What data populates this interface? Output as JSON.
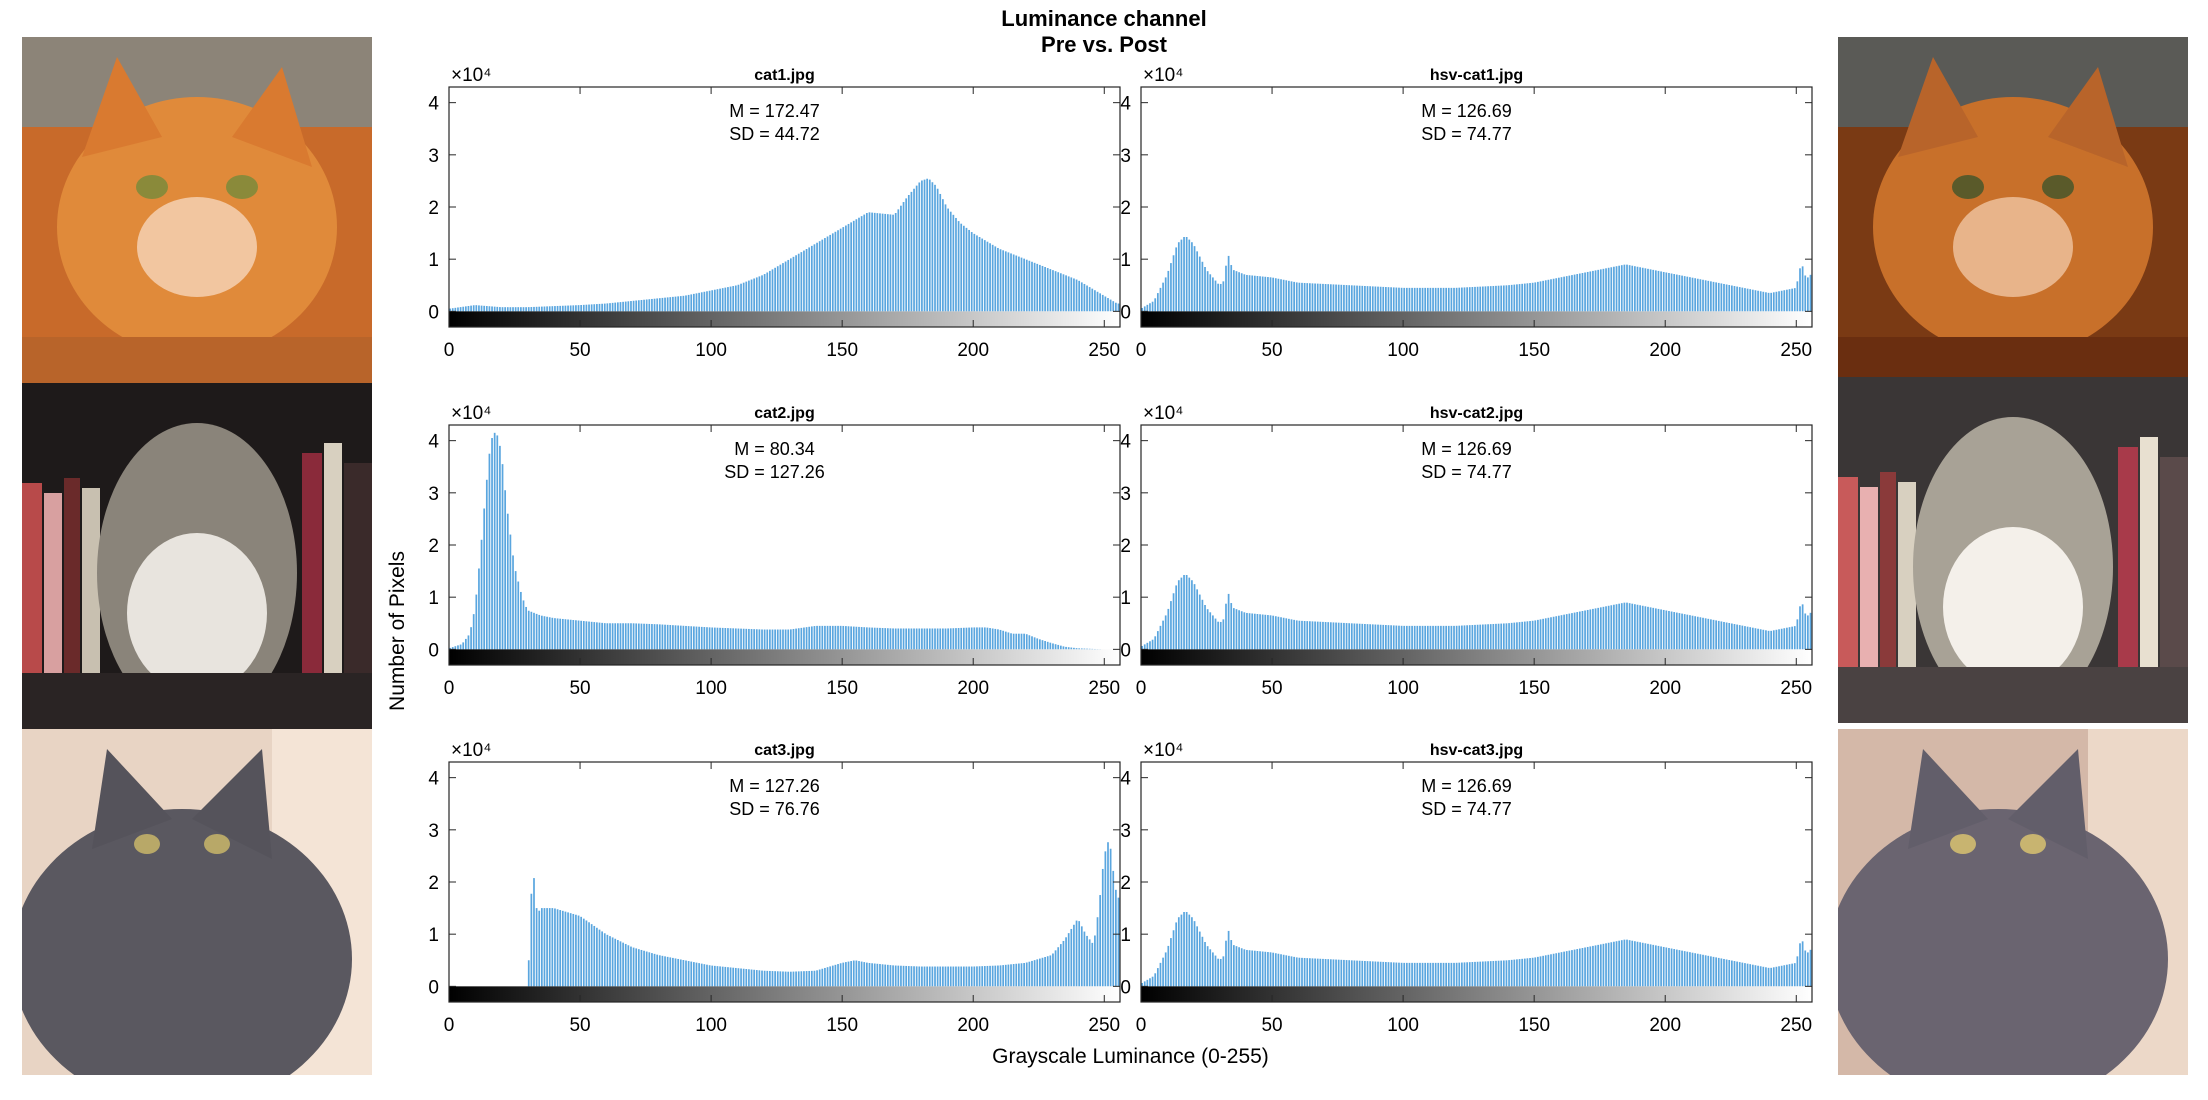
{
  "figure": {
    "title_line1": "Luminance channel",
    "title_line2": "Pre vs. Post",
    "ylabel": "Number of Pixels",
    "xlabel": "Grayscale Luminance (0-255)"
  },
  "photos": {
    "left": [
      {
        "name": "orange tabby cat (original)",
        "tone": "orange"
      },
      {
        "name": "long-haired tabby cat with books (original)",
        "tone": "tabby"
      },
      {
        "name": "gray cat (original)",
        "tone": "gray"
      }
    ],
    "right": [
      {
        "name": "orange tabby cat (equalized)",
        "tone": "orange-eq"
      },
      {
        "name": "long-haired tabby cat with books (equalized)",
        "tone": "tabby-eq"
      },
      {
        "name": "gray cat (equalized)",
        "tone": "gray-eq"
      }
    ]
  },
  "colors": {
    "bar": "#5aa6df",
    "axis": "#262626"
  },
  "chart_data": [
    {
      "type": "bar",
      "title": "cat1.jpg",
      "annotation": [
        "M = 172.47",
        "SD = 44.72"
      ],
      "exponent_label": "×10⁴",
      "xlim": [
        0,
        256
      ],
      "ylim": [
        -0.3,
        4.3
      ],
      "xticks": [
        0,
        50,
        100,
        150,
        200,
        250
      ],
      "yticks": [
        0,
        1,
        2,
        3,
        4
      ],
      "x": [
        0,
        10,
        20,
        30,
        40,
        50,
        60,
        70,
        80,
        90,
        100,
        110,
        120,
        130,
        140,
        150,
        160,
        170,
        175,
        180,
        183,
        186,
        190,
        195,
        200,
        210,
        220,
        230,
        240,
        250,
        255
      ],
      "values": [
        0.05,
        0.12,
        0.08,
        0.08,
        0.1,
        0.12,
        0.15,
        0.2,
        0.25,
        0.3,
        0.4,
        0.5,
        0.7,
        1.0,
        1.3,
        1.6,
        1.9,
        1.85,
        2.2,
        2.5,
        2.55,
        2.4,
        2.0,
        1.7,
        1.5,
        1.2,
        1.0,
        0.8,
        0.6,
        0.3,
        0.15
      ]
    },
    {
      "type": "bar",
      "title": "hsv-cat1.jpg",
      "annotation": [
        "M = 126.69",
        "SD = 74.77"
      ],
      "exponent_label": "×10⁴",
      "xlim": [
        0,
        256
      ],
      "ylim": [
        -0.3,
        4.3
      ],
      "xticks": [
        0,
        50,
        100,
        150,
        200,
        250
      ],
      "yticks": [
        0,
        1,
        2,
        3,
        4
      ],
      "x": [
        0,
        5,
        10,
        14,
        17,
        20,
        25,
        30,
        32,
        33,
        35,
        40,
        50,
        60,
        80,
        100,
        120,
        140,
        150,
        160,
        170,
        180,
        185,
        190,
        200,
        210,
        220,
        230,
        240,
        245,
        250,
        252,
        254,
        255
      ],
      "values": [
        0.05,
        0.2,
        0.7,
        1.3,
        1.45,
        1.3,
        0.8,
        0.5,
        0.6,
        1.15,
        0.8,
        0.7,
        0.65,
        0.55,
        0.5,
        0.45,
        0.45,
        0.5,
        0.55,
        0.65,
        0.75,
        0.85,
        0.9,
        0.85,
        0.75,
        0.65,
        0.55,
        0.45,
        0.35,
        0.4,
        0.45,
        0.95,
        0.6,
        0.7
      ]
    },
    {
      "type": "bar",
      "title": "cat2.jpg",
      "annotation": [
        "M = 80.34",
        "SD = 127.26"
      ],
      "exponent_label": "×10⁴",
      "xlim": [
        0,
        256
      ],
      "ylim": [
        -0.3,
        4.3
      ],
      "xticks": [
        0,
        50,
        100,
        150,
        200,
        250
      ],
      "yticks": [
        0,
        1,
        2,
        3,
        4
      ],
      "x": [
        0,
        5,
        8,
        10,
        12,
        14,
        16,
        18,
        20,
        22,
        25,
        28,
        30,
        35,
        40,
        50,
        60,
        70,
        80,
        90,
        100,
        110,
        120,
        130,
        140,
        150,
        160,
        170,
        180,
        190,
        200,
        205,
        210,
        215,
        220,
        225,
        230,
        235,
        240,
        245,
        250,
        255
      ],
      "values": [
        0.02,
        0.1,
        0.3,
        0.8,
        1.8,
        3.0,
        4.0,
        4.2,
        3.8,
        2.8,
        1.6,
        1.0,
        0.75,
        0.65,
        0.6,
        0.55,
        0.5,
        0.5,
        0.48,
        0.45,
        0.42,
        0.4,
        0.38,
        0.38,
        0.45,
        0.45,
        0.42,
        0.4,
        0.4,
        0.4,
        0.42,
        0.42,
        0.38,
        0.3,
        0.3,
        0.2,
        0.12,
        0.05,
        0.02,
        0.01,
        0.0,
        0.0
      ]
    },
    {
      "type": "bar",
      "title": "hsv-cat2.jpg",
      "annotation": [
        "M = 126.69",
        "SD = 74.77"
      ],
      "exponent_label": "×10⁴",
      "xlim": [
        0,
        256
      ],
      "ylim": [
        -0.3,
        4.3
      ],
      "xticks": [
        0,
        50,
        100,
        150,
        200,
        250
      ],
      "yticks": [
        0,
        1,
        2,
        3,
        4
      ],
      "x": [
        0,
        5,
        10,
        14,
        17,
        20,
        25,
        30,
        32,
        33,
        35,
        40,
        50,
        60,
        80,
        100,
        120,
        140,
        150,
        160,
        170,
        180,
        185,
        190,
        200,
        210,
        220,
        230,
        240,
        245,
        250,
        252,
        254,
        255
      ],
      "values": [
        0.05,
        0.2,
        0.7,
        1.3,
        1.45,
        1.3,
        0.8,
        0.5,
        0.6,
        1.15,
        0.8,
        0.7,
        0.65,
        0.55,
        0.5,
        0.45,
        0.45,
        0.5,
        0.55,
        0.65,
        0.75,
        0.85,
        0.9,
        0.85,
        0.75,
        0.65,
        0.55,
        0.45,
        0.35,
        0.4,
        0.45,
        0.95,
        0.6,
        0.7
      ]
    },
    {
      "type": "bar",
      "title": "cat3.jpg",
      "annotation": [
        "M = 127.26",
        "SD = 76.76"
      ],
      "exponent_label": "×10⁴",
      "xlim": [
        0,
        256
      ],
      "ylim": [
        -0.3,
        4.3
      ],
      "xticks": [
        0,
        50,
        100,
        150,
        200,
        250
      ],
      "yticks": [
        0,
        1,
        2,
        3,
        4
      ],
      "x": [
        0,
        30,
        31,
        32,
        33,
        34,
        35,
        40,
        50,
        60,
        70,
        80,
        90,
        100,
        110,
        120,
        130,
        140,
        150,
        155,
        160,
        170,
        180,
        190,
        200,
        210,
        220,
        230,
        235,
        240,
        243,
        246,
        248,
        250,
        252,
        254,
        255
      ],
      "values": [
        0.0,
        0.0,
        1.0,
        2.55,
        1.6,
        1.4,
        1.5,
        1.5,
        1.35,
        1.0,
        0.75,
        0.6,
        0.5,
        0.4,
        0.35,
        0.3,
        0.28,
        0.3,
        0.45,
        0.5,
        0.45,
        0.4,
        0.38,
        0.38,
        0.38,
        0.4,
        0.45,
        0.6,
        0.9,
        1.3,
        1.0,
        0.8,
        1.5,
        2.5,
        2.85,
        2.0,
        1.7
      ]
    },
    {
      "type": "bar",
      "title": "hsv-cat3.jpg",
      "annotation": [
        "M = 126.69",
        "SD = 74.77"
      ],
      "exponent_label": "×10⁴",
      "xlim": [
        0,
        256
      ],
      "ylim": [
        -0.3,
        4.3
      ],
      "xticks": [
        0,
        50,
        100,
        150,
        200,
        250
      ],
      "yticks": [
        0,
        1,
        2,
        3,
        4
      ],
      "x": [
        0,
        5,
        10,
        14,
        17,
        20,
        25,
        30,
        32,
        33,
        35,
        40,
        50,
        60,
        80,
        100,
        120,
        140,
        150,
        160,
        170,
        180,
        185,
        190,
        200,
        210,
        220,
        230,
        240,
        245,
        250,
        252,
        254,
        255
      ],
      "values": [
        0.05,
        0.2,
        0.7,
        1.3,
        1.45,
        1.3,
        0.8,
        0.5,
        0.6,
        1.15,
        0.8,
        0.7,
        0.65,
        0.55,
        0.5,
        0.45,
        0.45,
        0.5,
        0.55,
        0.65,
        0.75,
        0.85,
        0.9,
        0.85,
        0.75,
        0.65,
        0.55,
        0.45,
        0.35,
        0.4,
        0.45,
        0.95,
        0.6,
        0.7
      ]
    }
  ]
}
